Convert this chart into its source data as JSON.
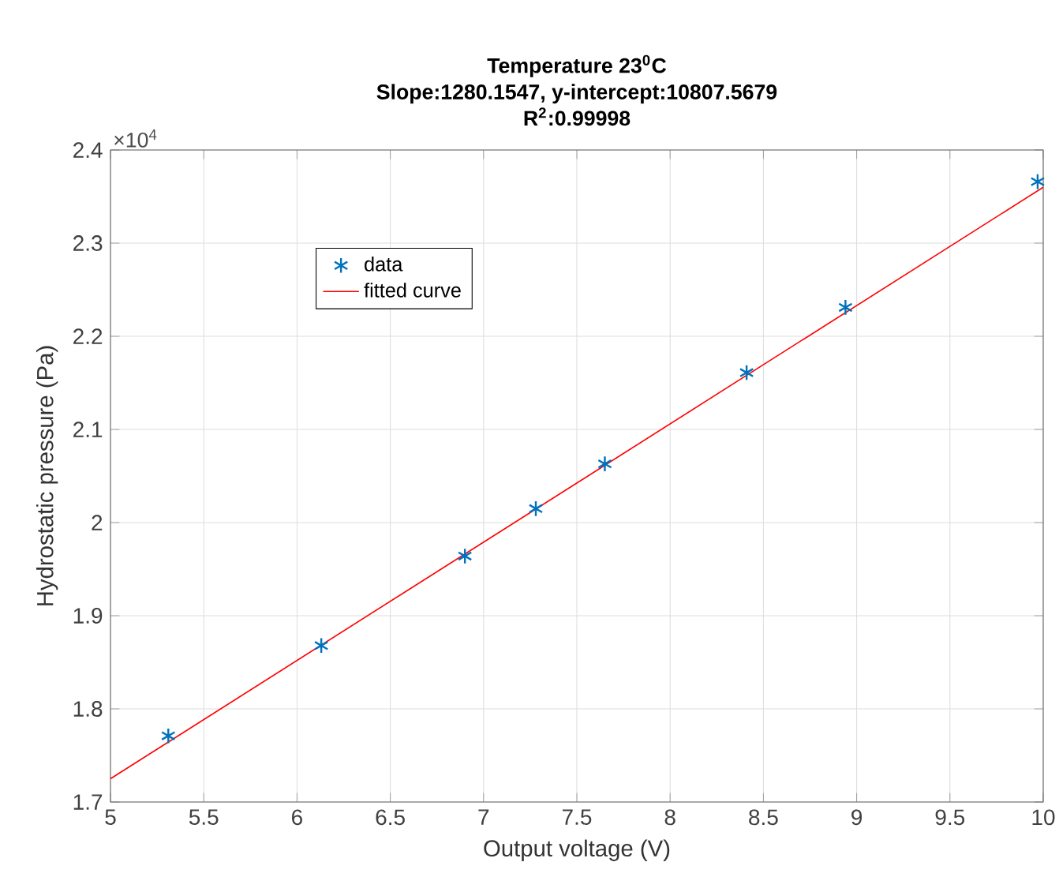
{
  "chart_data": {
    "type": "scatter",
    "title": "Temperature 23$^{0}$C",
    "subtitle": "Slope:1280.1547, y-intercept:10807.5679",
    "annotations": [
      "R$^{2}$:0.99998",
      "×10$^{4}$"
    ],
    "xlabel": "Output voltage (V)",
    "ylabel": "Hydrostatic pressure (Pa)",
    "series": [
      {
        "name": "data",
        "type": "scatter",
        "color": "#0072bd",
        "marker": "cross",
        "x": [
          5.31,
          6.13,
          6.9,
          7.28,
          7.65,
          8.41,
          8.94,
          9.97
        ],
        "values": [
          1.771,
          1.868,
          1.964,
          2.015,
          2.063,
          2.161,
          2.231,
          2.366
        ]
      },
      {
        "name": "fitted curve",
        "type": "line",
        "color": "#ff0000",
        "marker": "none",
        "line_style": "solid",
        "x": [
          5,
          10
        ],
        "values": [
          1.725,
          2.36
        ]
      }
    ],
    "xlim": [
      5,
      10
    ],
    "ylim": [
      1.7,
      2.4
    ],
    "xticks": [
      5,
      5.5,
      6,
      6.5,
      7,
      7.5,
      8,
      8.5,
      9,
      9.5,
      10
    ],
    "yticks": [
      1.7,
      1.8,
      1.9,
      2,
      2.1,
      2.2,
      2.3,
      2.4
    ],
    "grid": true,
    "legend": "top left"
  }
}
